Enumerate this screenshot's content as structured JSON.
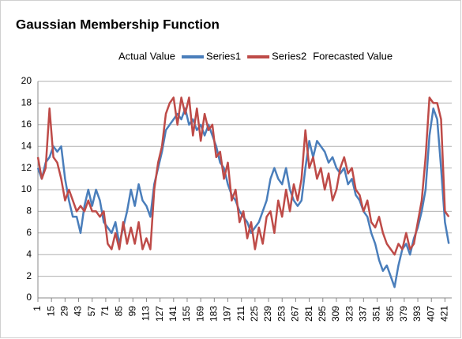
{
  "chart_data": {
    "type": "line",
    "title": "Gaussian Membership Function",
    "legend_prefix": "Actual Value",
    "legend_suffix": "Forecasted Value",
    "x": [
      1,
      5,
      9,
      13,
      17,
      21,
      25,
      29,
      33,
      37,
      41,
      45,
      49,
      53,
      57,
      61,
      65,
      69,
      73,
      77,
      81,
      85,
      89,
      93,
      97,
      101,
      105,
      109,
      113,
      117,
      121,
      125,
      129,
      133,
      137,
      141,
      145,
      149,
      153,
      157,
      161,
      165,
      169,
      173,
      177,
      181,
      185,
      189,
      193,
      197,
      201,
      205,
      209,
      213,
      217,
      221,
      225,
      229,
      233,
      237,
      241,
      245,
      249,
      253,
      257,
      261,
      265,
      269,
      273,
      277,
      281,
      285,
      289,
      293,
      297,
      301,
      305,
      309,
      313,
      317,
      321,
      325,
      329,
      333,
      337,
      341,
      345,
      349,
      353,
      357,
      361,
      365,
      369,
      373,
      377,
      381,
      385,
      389,
      393,
      397,
      401,
      405,
      409,
      413,
      417,
      421,
      425
    ],
    "series": [
      {
        "name": "Series1",
        "color": "#4a7ebb",
        "values": [
          12,
          11,
          12.5,
          13,
          14,
          13.5,
          14,
          11,
          9,
          7.5,
          7.5,
          6,
          8.5,
          10,
          8.5,
          10,
          9,
          7,
          6.5,
          6,
          7,
          5,
          6.5,
          8,
          10,
          8.5,
          10.5,
          9,
          8.5,
          7.5,
          10.5,
          12,
          13.5,
          15.5,
          16,
          16.5,
          17,
          16.5,
          17.5,
          16,
          16.5,
          15.5,
          16,
          15,
          16,
          15,
          14,
          12.5,
          12,
          10.5,
          9.5,
          9,
          8,
          7.5,
          7,
          6,
          6.5,
          7,
          8,
          9,
          11,
          12,
          11,
          10.5,
          12,
          10,
          9,
          8.5,
          9,
          12,
          14.5,
          13,
          14.5,
          14,
          13.5,
          12.5,
          13,
          12,
          11.5,
          12,
          10.5,
          11,
          9.5,
          9,
          8,
          7.5,
          6,
          5,
          3.5,
          2.5,
          3,
          2,
          1,
          3,
          4.5,
          5,
          4,
          5.5,
          6.5,
          8,
          10,
          15,
          17.5,
          16.5,
          12,
          7,
          5
        ]
      },
      {
        "name": "Series2",
        "color": "#be4b48",
        "values": [
          13,
          11,
          12,
          17.5,
          13,
          12.5,
          11,
          9,
          10,
          9,
          8,
          8.5,
          8,
          9,
          8,
          8,
          7.5,
          8,
          5,
          4.5,
          6,
          4.5,
          7,
          5,
          6.5,
          5,
          7,
          4.5,
          5.5,
          4.5,
          10,
          12.5,
          14,
          17,
          18,
          18.5,
          16,
          18.5,
          17,
          18.5,
          15,
          17.5,
          14.5,
          17,
          15.5,
          16,
          13,
          13.5,
          11,
          12.5,
          9,
          10,
          7,
          8,
          5.5,
          7,
          4.5,
          6.5,
          5,
          7.5,
          8,
          6,
          9,
          7.5,
          10,
          8,
          10.5,
          9,
          11,
          15.5,
          12,
          13,
          11,
          12,
          10,
          11.5,
          9,
          10,
          12,
          13,
          11.5,
          12,
          10,
          9.5,
          8,
          9,
          7,
          6.5,
          7.5,
          6,
          5,
          4.5,
          4,
          5,
          4.5,
          6,
          4.5,
          5,
          7,
          9,
          13,
          18.5,
          18,
          18,
          16.5,
          8,
          7.5
        ]
      }
    ],
    "xlim": [
      1,
      428
    ],
    "xticks": [
      1,
      15,
      29,
      43,
      57,
      71,
      85,
      99,
      113,
      127,
      141,
      155,
      169,
      183,
      197,
      211,
      225,
      239,
      253,
      267,
      281,
      295,
      309,
      323,
      337,
      351,
      365,
      379,
      393,
      407,
      421
    ],
    "ylim": [
      0,
      20
    ],
    "yticks": [
      0,
      2,
      4,
      6,
      8,
      10,
      12,
      14,
      16,
      18,
      20
    ],
    "grid": true
  }
}
